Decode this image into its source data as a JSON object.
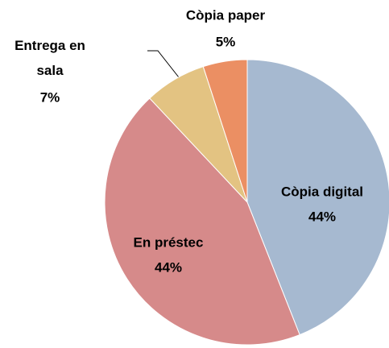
{
  "chart_data": {
    "type": "pie",
    "categories": [
      "Còpia digital",
      "En préstec",
      "Entrega en sala",
      "Còpia paper"
    ],
    "values": [
      44,
      44,
      7,
      5
    ],
    "value_labels": [
      "44%",
      "44%",
      "7%",
      "5%"
    ],
    "colors": [
      "#a6b9d0",
      "#d68a8a",
      "#e3c382",
      "#eb8f63"
    ]
  }
}
